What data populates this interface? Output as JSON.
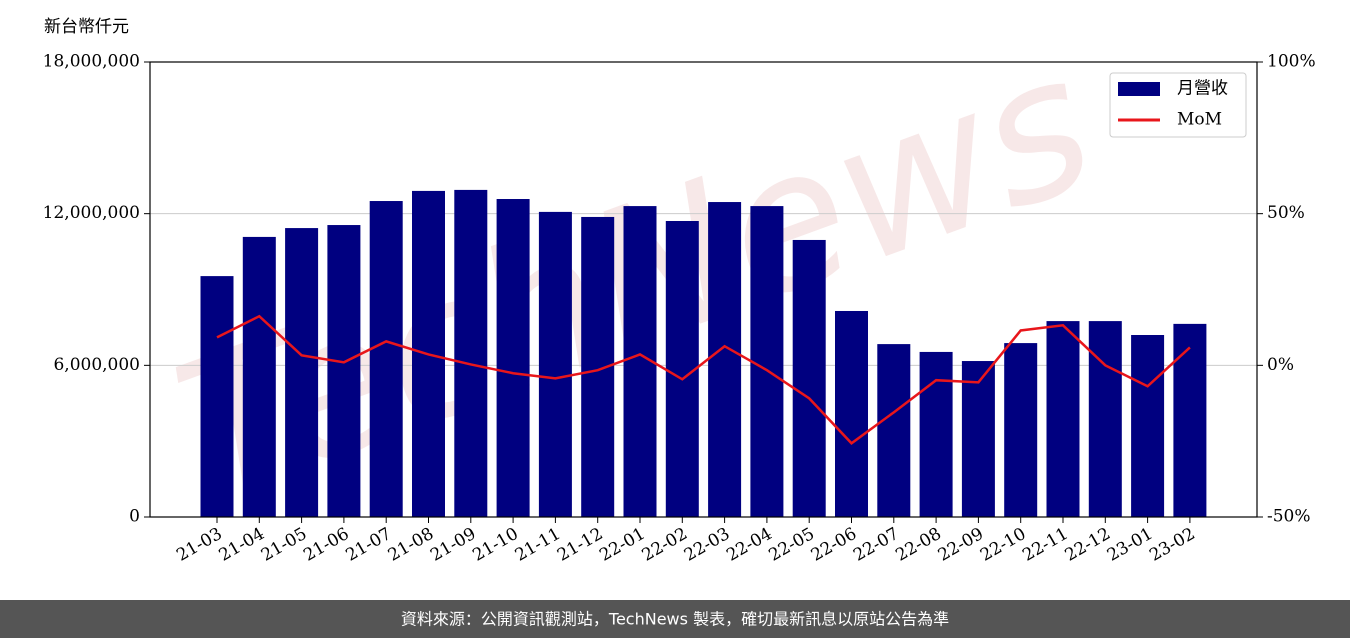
{
  "chart_data": {
    "type": "bar-line",
    "y_axis_label": "新台幣仟元",
    "watermark": "TechNews",
    "footer": "資料來源：公開資訊觀測站，TechNews 製表，確切最新訊息以原站公告為準",
    "categories": [
      "21-03",
      "21-04",
      "21-05",
      "21-06",
      "21-07",
      "21-08",
      "21-09",
      "21-10",
      "21-11",
      "21-12",
      "22-01",
      "22-02",
      "22-03",
      "22-04",
      "22-05",
      "22-06",
      "22-07",
      "22-08",
      "22-09",
      "22-10",
      "22-11",
      "22-12",
      "23-01",
      "23-02"
    ],
    "series": [
      {
        "name": "月營收",
        "type": "bar",
        "color": "#000080",
        "values": [
          9530000,
          11080000,
          11430000,
          11550000,
          12500000,
          12900000,
          12940000,
          12580000,
          12070000,
          11870000,
          12300000,
          11710000,
          12460000,
          12300000,
          10960000,
          8150000,
          6840000,
          6530000,
          6170000,
          6880000,
          7750000,
          7750000,
          7200000,
          7640000
        ]
      },
      {
        "name": "MoM",
        "type": "line",
        "color": "#e8161b",
        "axis": "y2",
        "values": [
          9.2,
          16.2,
          3.3,
          1.0,
          7.9,
          3.6,
          0.3,
          -2.6,
          -4.3,
          -1.6,
          3.6,
          -4.6,
          6.3,
          -1.6,
          -10.9,
          -25.7,
          -15.5,
          -4.9,
          -5.6,
          11.5,
          13.2,
          0.0,
          -6.9,
          5.9
        ]
      }
    ],
    "ylim": [
      0,
      18000000
    ],
    "yticks": [
      0,
      {
        "value": 6000000,
        "label": "6,000,000"
      },
      {
        "value": 12000000,
        "label": "12,000,000"
      },
      {
        "value": 18000000,
        "label": "18,000,000"
      }
    ],
    "y2lim": [
      -50,
      100
    ],
    "y2ticks": [
      {
        "value": -50,
        "label": "-50%"
      },
      {
        "value": 0,
        "label": "0%"
      },
      {
        "value": 50,
        "label": "50%"
      },
      {
        "value": 100,
        "label": "100%"
      }
    ],
    "grid": true,
    "legend_position": "upper right"
  }
}
